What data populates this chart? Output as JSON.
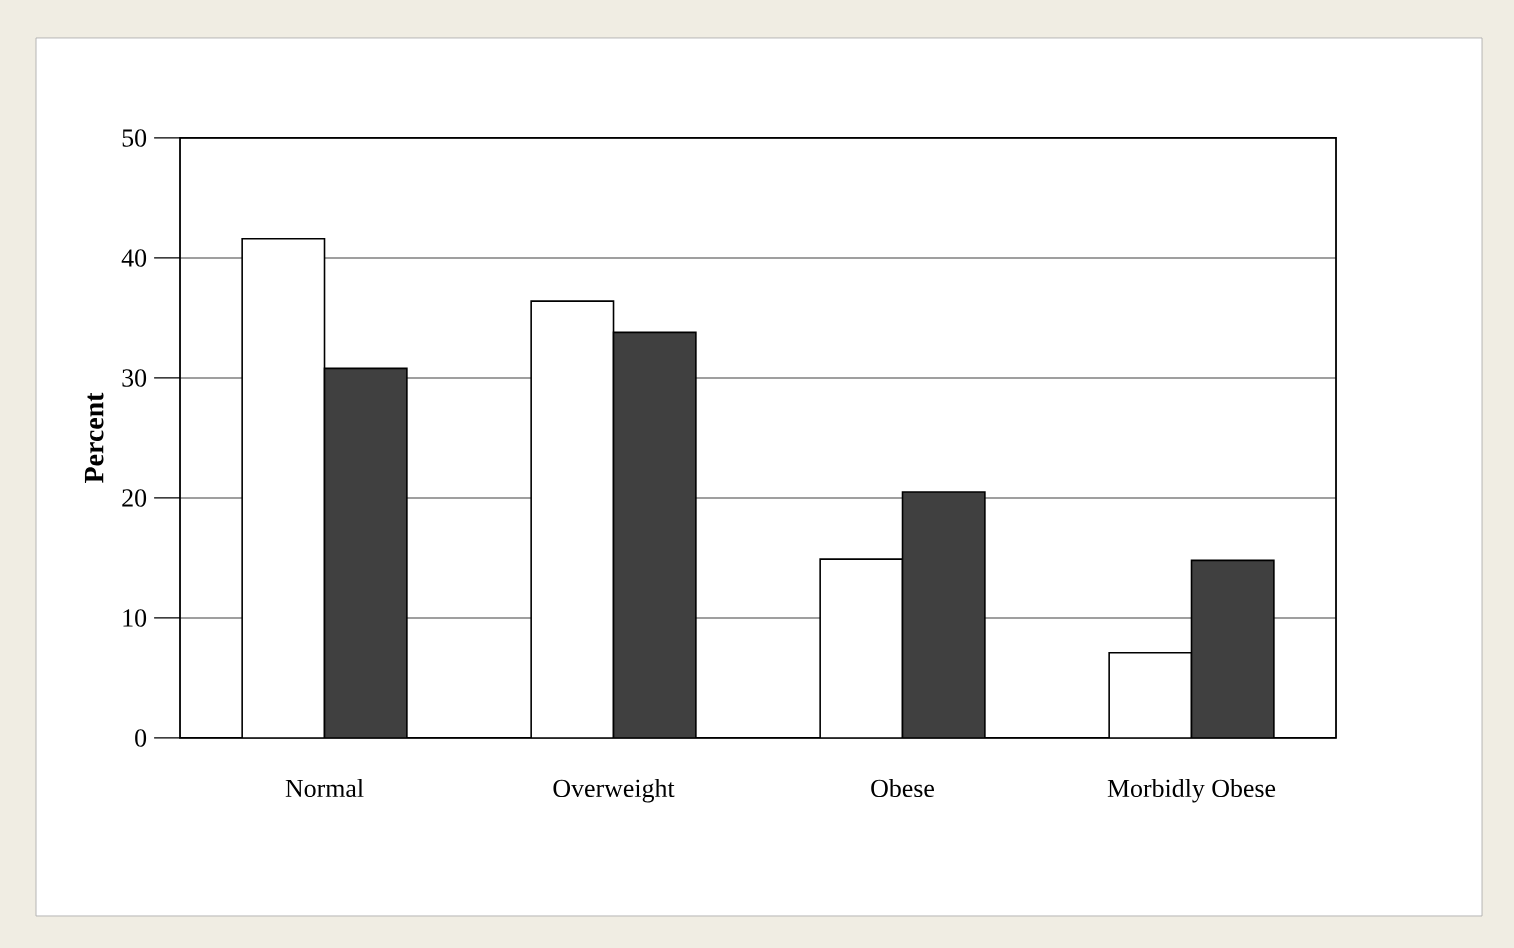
{
  "chart_data": {
    "type": "bar",
    "ylabel": "Percent",
    "categories": [
      "Normal",
      "Overweight",
      "Obese",
      "Morbidly Obese"
    ],
    "series": [
      {
        "color": "#ffffff",
        "values": [
          41.6,
          36.4,
          14.9,
          7.1
        ]
      },
      {
        "color": "#404040",
        "values": [
          30.8,
          33.8,
          20.5,
          14.8
        ]
      }
    ],
    "ylim": [
      0,
      50
    ],
    "yticks": [
      0,
      10,
      20,
      30,
      40,
      50
    ],
    "grid": "y"
  }
}
